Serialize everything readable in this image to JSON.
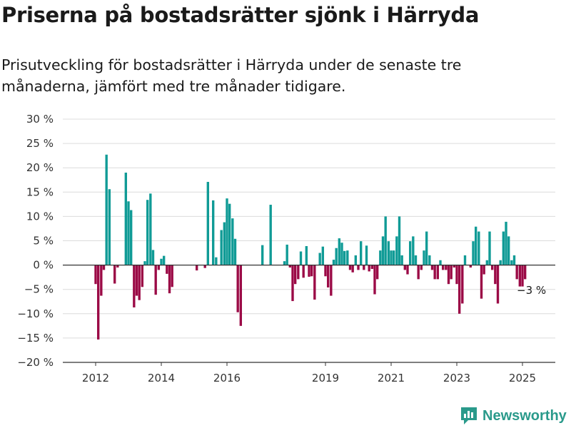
{
  "header": {
    "title": "Priserna på bostadsrätter sjönk i Härryda",
    "subtitle": "Prisutveckling för bostadsrätter i Härryda under de senaste tre månaderna, jämfört med tre månader tidigare."
  },
  "brand": {
    "name": "Newsworthy",
    "icon": "bar-chart-logo-icon"
  },
  "colors": {
    "positive": "#109b96",
    "negative": "#9b0a46",
    "grid": "#dcdcdc",
    "axis": "#333333",
    "brand": "#2a9a8b"
  },
  "chart_data": {
    "type": "bar",
    "title": "Priserna på bostadsrätter sjönk i Härryda",
    "xlabel": "",
    "ylabel": "",
    "ylim": [
      -20,
      30
    ],
    "ytick_labels": [
      "30 %",
      "25 %",
      "20 %",
      "15 %",
      "10 %",
      "5 %",
      "0 %",
      "−5 %",
      "−10 %",
      "−15 %",
      "−20 %"
    ],
    "ytick_values": [
      30,
      25,
      20,
      15,
      10,
      5,
      0,
      -5,
      -10,
      -15,
      -20
    ],
    "xtick_labels": [
      "2012",
      "2014",
      "2016",
      "2019",
      "2021",
      "2023",
      "2025"
    ],
    "xtick_values": [
      2012.0,
      2014.0,
      2016.0,
      2019.0,
      2021.0,
      2023.0,
      2025.0
    ],
    "grid": true,
    "annotation": {
      "text": "−3 %",
      "x": 2025.0,
      "y": -3
    },
    "series": [
      {
        "x": [
          2012.0,
          2012.08,
          2012.17,
          2012.25,
          2012.33,
          2012.42,
          2012.5,
          2012.58,
          2012.67,
          2012.75,
          2012.83,
          2012.92,
          2013.0,
          2013.08,
          2013.17,
          2013.25,
          2013.33,
          2013.42,
          2013.5,
          2013.58,
          2013.67,
          2013.75,
          2013.83,
          2013.92,
          2014.0,
          2014.08,
          2014.17,
          2014.25,
          2014.33,
          2014.42,
          2014.5,
          2014.58,
          2014.67,
          2014.75,
          2014.83,
          2014.92,
          2015.0,
          2015.08,
          2015.17,
          2015.25,
          2015.33,
          2015.42,
          2015.5,
          2015.58,
          2015.67,
          2015.75,
          2015.83,
          2015.92,
          2016.0,
          2016.08,
          2016.17,
          2016.25,
          2016.33,
          2016.42,
          2016.5,
          2016.58,
          2016.67,
          2016.75,
          2016.83,
          2016.92,
          2017.0,
          2017.08,
          2017.17,
          2017.25,
          2017.33,
          2017.42,
          2017.5,
          2017.58,
          2017.67,
          2017.75,
          2017.83,
          2017.92,
          2018.0,
          2018.08,
          2018.17,
          2018.25,
          2018.33,
          2018.42,
          2018.5,
          2018.58,
          2018.67,
          2018.75,
          2018.83,
          2018.92,
          2019.0,
          2019.08,
          2019.17,
          2019.25,
          2019.33,
          2019.42,
          2019.5,
          2019.58,
          2019.67,
          2019.75,
          2019.83,
          2019.92,
          2020.0,
          2020.08,
          2020.17,
          2020.25,
          2020.33,
          2020.42,
          2020.5,
          2020.58,
          2020.67,
          2020.75,
          2020.83,
          2020.92,
          2021.0,
          2021.08,
          2021.17,
          2021.25,
          2021.33,
          2021.42,
          2021.5,
          2021.58,
          2021.67,
          2021.75,
          2021.83,
          2021.92,
          2022.0,
          2022.08,
          2022.17,
          2022.25,
          2022.33,
          2022.42,
          2022.5,
          2022.58,
          2022.67,
          2022.75,
          2022.83,
          2022.92,
          2023.0,
          2023.08,
          2023.17,
          2023.25,
          2023.33,
          2023.42,
          2023.5,
          2023.58,
          2023.67,
          2023.75,
          2023.83,
          2023.92,
          2024.0,
          2024.08,
          2024.17,
          2024.25,
          2024.33,
          2024.42,
          2024.5,
          2024.58,
          2024.67,
          2024.75,
          2024.83,
          2024.92,
          2025.0,
          2025.08,
          2025.17,
          2025.25
        ],
        "values": [
          -3.9,
          -15.3,
          -6.3,
          -1.0,
          22.7,
          15.6,
          0,
          -3.8,
          -0.5,
          0,
          0,
          19.0,
          13.1,
          11.3,
          -8.7,
          -6.3,
          -7.2,
          -4.5,
          0.8,
          13.4,
          14.7,
          3.1,
          -6.1,
          -1.0,
          1.3,
          1.9,
          -1.8,
          -5.8,
          -4.5,
          0,
          0,
          0,
          0,
          0,
          0,
          0,
          0,
          -1.1,
          0,
          0,
          -0.6,
          17.1,
          0,
          13.3,
          1.6,
          0,
          7.2,
          8.8,
          13.7,
          12.6,
          9.6,
          5.4,
          -9.7,
          -12.5,
          0,
          0,
          0,
          0,
          0,
          0,
          0,
          4.1,
          0,
          0,
          12.4,
          0,
          0,
          0,
          0,
          0.8,
          4.2,
          -0.5,
          -7.4,
          -3.9,
          -2.9,
          2.8,
          -2.6,
          3.9,
          -2.4,
          -2.3,
          -7.1,
          0,
          2.5,
          3.8,
          -2.3,
          -4.6,
          -6.3,
          1.1,
          3.5,
          5.5,
          4.6,
          2.9,
          3.0,
          -1.0,
          -1.5,
          2.0,
          -1.0,
          4.9,
          -1.0,
          4.0,
          -1.3,
          -0.8,
          -6.0,
          -2.9,
          3.0,
          5.9,
          10.0,
          4.9,
          3.0,
          3.0,
          5.9,
          10.0,
          2.0,
          -1.0,
          -1.9,
          4.9,
          5.9,
          2.0,
          -2.9,
          -1.0,
          3.0,
          6.9,
          2.0,
          -1.0,
          -2.9,
          -2.9,
          1.0,
          -1.0,
          -1.0,
          -3.9,
          -2.9,
          -0.5,
          -3.9,
          -10.0,
          -7.9,
          2.0,
          0,
          -0.5,
          4.9,
          7.9,
          6.9,
          -6.9,
          -1.9,
          1.0,
          6.9,
          -1.0,
          -3.9,
          -7.9,
          1.0,
          6.9,
          8.9,
          5.9,
          1.0,
          2.0,
          -2.9,
          -4.4,
          -4.4,
          -2.9,
          0,
          0
        ]
      }
    ]
  }
}
